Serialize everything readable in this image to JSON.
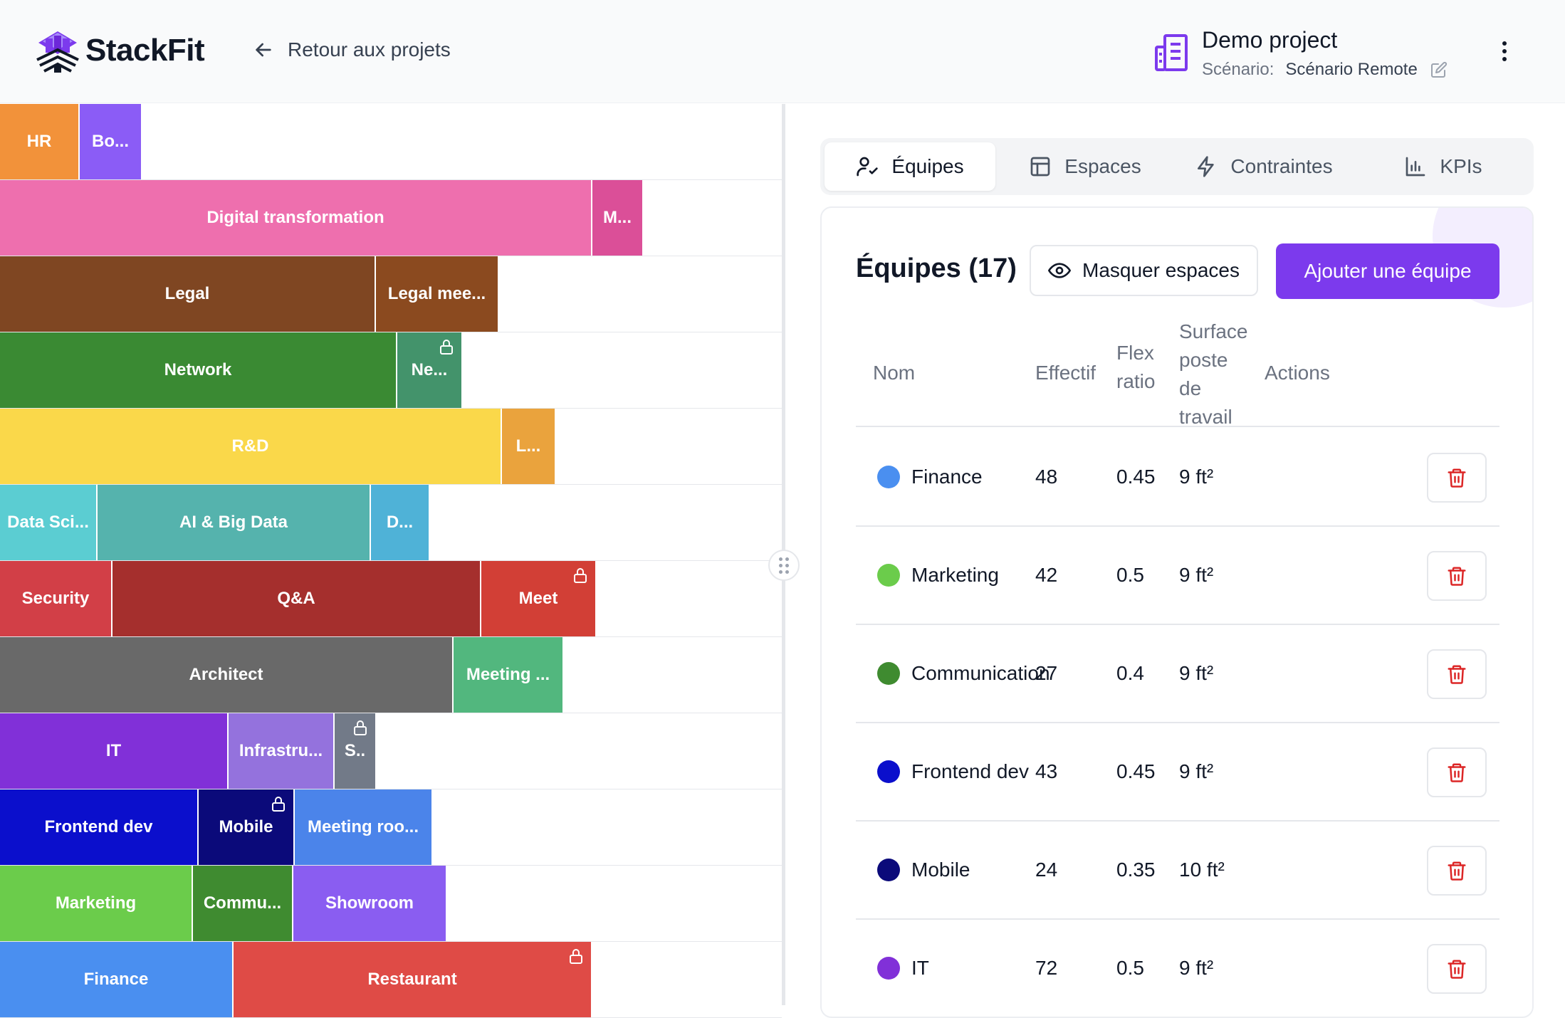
{
  "header": {
    "logo_text": "StackFit",
    "back_label": "Retour aux projets",
    "project_name": "Demo project",
    "scenario_label": "Scénario:",
    "scenario_value": "Scénario Remote"
  },
  "canvas": {
    "rows": [
      {
        "blocks": [
          {
            "label": "HR",
            "color": "#f2923a",
            "width": 112,
            "locked": false
          },
          {
            "label": "Bo...",
            "color": "#8b5cf6",
            "width": 88,
            "locked": false
          }
        ]
      },
      {
        "blocks": [
          {
            "label": "Digital transformation",
            "color": "#ee6fae",
            "width": 832,
            "locked": false
          },
          {
            "label": "M...",
            "color": "#db4f98",
            "width": 72,
            "locked": false
          }
        ]
      },
      {
        "blocks": [
          {
            "label": "Legal",
            "color": "#7f4622",
            "width": 528,
            "locked": false
          },
          {
            "label": "Legal mee...",
            "color": "#8b4a1f",
            "width": 173,
            "locked": false
          }
        ]
      },
      {
        "blocks": [
          {
            "label": "Network",
            "color": "#3a8a33",
            "width": 558,
            "locked": false
          },
          {
            "label": "Ne...",
            "color": "#43936b",
            "width": 92,
            "locked": true
          }
        ]
      },
      {
        "blocks": [
          {
            "label": "R&D",
            "color": "#fad84a",
            "width": 705,
            "locked": false
          },
          {
            "label": "L...",
            "color": "#eaa33d",
            "width": 76,
            "locked": false
          }
        ]
      },
      {
        "blocks": [
          {
            "label": "Data Sci...",
            "color": "#5bcdd2",
            "width": 137,
            "locked": false
          },
          {
            "label": "AI & Big Data",
            "color": "#55b3ad",
            "width": 384,
            "locked": false
          },
          {
            "label": "D...",
            "color": "#4fb2d7",
            "width": 83,
            "locked": false
          }
        ]
      },
      {
        "blocks": [
          {
            "label": "Security",
            "color": "#d23f47",
            "width": 158,
            "locked": false
          },
          {
            "label": "Q&A",
            "color": "#a52f2d",
            "width": 518,
            "locked": false
          },
          {
            "label": "Meet",
            "color": "#d23f36",
            "width": 162,
            "locked": true
          }
        ]
      },
      {
        "blocks": [
          {
            "label": "Architect",
            "color": "#696969",
            "width": 637,
            "locked": false
          },
          {
            "label": "Meeting ...",
            "color": "#52b77e",
            "width": 155,
            "locked": false
          }
        ]
      },
      {
        "blocks": [
          {
            "label": "IT",
            "color": "#8130d8",
            "width": 321,
            "locked": false
          },
          {
            "label": "Infrastru...",
            "color": "#9472dd",
            "width": 149,
            "locked": false
          },
          {
            "label": "S..",
            "color": "#727a88",
            "width": 59,
            "locked": true
          }
        ]
      },
      {
        "blocks": [
          {
            "label": "Frontend dev",
            "color": "#0b0fcc",
            "width": 279,
            "locked": false
          },
          {
            "label": "Mobile",
            "color": "#0b0a7a",
            "width": 135,
            "locked": true
          },
          {
            "label": "Meeting roo...",
            "color": "#4b84ea",
            "width": 194,
            "locked": false
          }
        ]
      },
      {
        "blocks": [
          {
            "label": "Marketing",
            "color": "#6bcc4b",
            "width": 271,
            "locked": false
          },
          {
            "label": "Commu...",
            "color": "#3f8b30",
            "width": 141,
            "locked": false
          },
          {
            "label": "Showroom",
            "color": "#8a5df1",
            "width": 216,
            "locked": false
          }
        ]
      },
      {
        "blocks": [
          {
            "label": "Finance",
            "color": "#4a8ff0",
            "width": 328,
            "locked": false
          },
          {
            "label": "Restaurant",
            "color": "#df4b46",
            "width": 504,
            "locked": true
          }
        ]
      }
    ]
  },
  "tabs": [
    {
      "label": "Équipes",
      "icon": "user-check-icon",
      "active": true
    },
    {
      "label": "Espaces",
      "icon": "layout-icon",
      "active": false
    },
    {
      "label": "Contraintes",
      "icon": "bolt-icon",
      "active": false
    },
    {
      "label": "KPIs",
      "icon": "bar-chart-icon",
      "active": false
    }
  ],
  "teams_panel": {
    "title": "Équipes (17)",
    "hide_spaces_label": "Masquer espaces",
    "add_team_label": "Ajouter une équipe",
    "columns": {
      "name": "Nom",
      "headcount": "Effectif",
      "flex_line1": "Flex",
      "flex_line2": "ratio",
      "surface_line1": "Surface",
      "surface_line2": "poste",
      "surface_line3": "de",
      "surface_line4": "travail",
      "actions": "Actions"
    },
    "rows": [
      {
        "name": "Finance",
        "color": "#4a8ff0",
        "headcount": "48",
        "flex": "0.45",
        "surface": "9 ft²"
      },
      {
        "name": "Marketing",
        "color": "#6bcc4b",
        "headcount": "42",
        "flex": "0.5",
        "surface": "9 ft²"
      },
      {
        "name": "Communication",
        "color": "#3f8b30",
        "headcount": "27",
        "flex": "0.4",
        "surface": "9 ft²"
      },
      {
        "name": "Frontend dev",
        "color": "#0b0fcc",
        "headcount": "43",
        "flex": "0.45",
        "surface": "9 ft²"
      },
      {
        "name": "Mobile",
        "color": "#0b0a7a",
        "headcount": "24",
        "flex": "0.35",
        "surface": "10 ft²"
      },
      {
        "name": "IT",
        "color": "#8130d8",
        "headcount": "72",
        "flex": "0.5",
        "surface": "9 ft²"
      }
    ]
  },
  "colors": {
    "accent": "#7c3aed",
    "danger": "#dc2626"
  }
}
